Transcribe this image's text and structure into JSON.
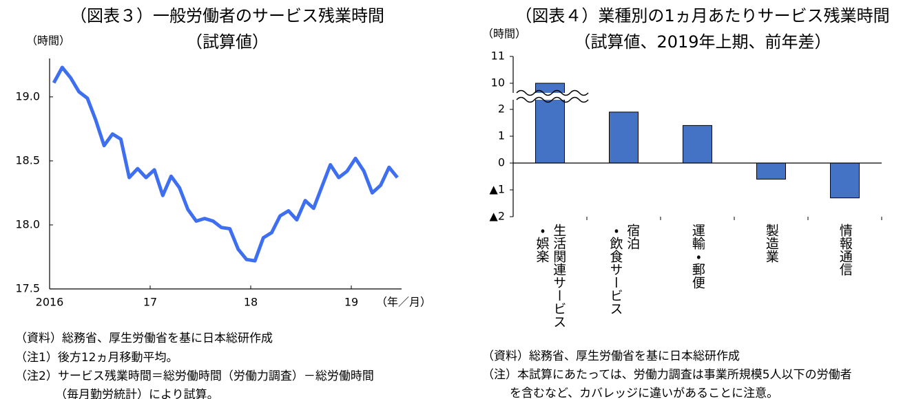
{
  "chart_data": [
    {
      "type": "line",
      "title": "（図表３）一般労働者のサービス残業時間",
      "subtitle": "（試算値）",
      "y_label": "（時間）",
      "x_label": "（年／月）",
      "color": "#3d6ff0",
      "x": [
        2016.042,
        2016.125,
        2016.208,
        2016.292,
        2016.375,
        2016.458,
        2016.542,
        2016.625,
        2016.708,
        2016.792,
        2016.875,
        2016.958,
        2017.042,
        2017.125,
        2017.208,
        2017.292,
        2017.375,
        2017.458,
        2017.542,
        2017.625,
        2017.708,
        2017.792,
        2017.875,
        2017.958,
        2018.042,
        2018.125,
        2018.208,
        2018.292,
        2018.375,
        2018.458,
        2018.542,
        2018.625,
        2018.708,
        2018.792,
        2018.875,
        2018.958,
        2019.042,
        2019.125,
        2019.208,
        2019.292,
        2019.375,
        2019.458
      ],
      "values": [
        19.11,
        19.23,
        19.15,
        19.04,
        18.99,
        18.82,
        18.62,
        18.71,
        18.67,
        18.37,
        18.44,
        18.37,
        18.43,
        18.23,
        18.38,
        18.29,
        18.12,
        18.03,
        18.05,
        18.03,
        17.98,
        17.97,
        17.81,
        17.73,
        17.72,
        17.9,
        17.94,
        18.07,
        18.11,
        18.04,
        18.19,
        18.13,
        18.3,
        18.47,
        18.37,
        18.42,
        18.52,
        18.42,
        18.25,
        18.31,
        18.45,
        18.37
      ],
      "xlim": [
        2016,
        2019.5
      ],
      "xticks": [
        2016,
        {
          "value": 2017,
          "label": "17"
        },
        {
          "value": 2018,
          "label": "18"
        },
        {
          "value": 2019,
          "label": "19"
        }
      ],
      "ylim": [
        17.5,
        19.3
      ],
      "yticks": [
        17.5,
        {
          "value": 18,
          "label": "18.0"
        },
        18.5,
        {
          "value": 19,
          "label": "19.0"
        }
      ],
      "notes": [
        "（資料）総務省、厚生労働省を基に日本総研作成",
        "（注1）後方12ヵ月移動平均。",
        "（注2）サービス残業時間＝総労働時間（労働力調査）－総労働時間",
        "（毎月勤労統計）により試算。"
      ]
    },
    {
      "type": "bar",
      "title": "（図表４）業種別の1ヵ月あたりサービス残業時間",
      "subtitle": "（試算値、2019年上期、前年差）",
      "y_label": "（時間）",
      "color": "#4472c4",
      "categories": [
        "生活関連サービス\n・娯楽",
        "宿泊\n・飲食サービス",
        "運輸・郵便",
        "製造業",
        "情報通信"
      ],
      "values": [
        10,
        1.9,
        1.4,
        -0.6,
        -1.3
      ],
      "ylim": [
        -2,
        11
      ],
      "ybreak": [
        2,
        10
      ],
      "yticks": [
        {
          "value": -2,
          "label": "▲2"
        },
        {
          "value": -1,
          "label": "▲1"
        },
        0,
        1,
        2,
        10,
        11
      ],
      "notes": [
        "（資料）総務省、厚生労働省を基に日本総研作成",
        "（注）本試算にあたっては、労働力調査は事業所規模5人以下の労働者",
        "を含むなど、カバレッジに違いがあることに注意。"
      ]
    }
  ]
}
